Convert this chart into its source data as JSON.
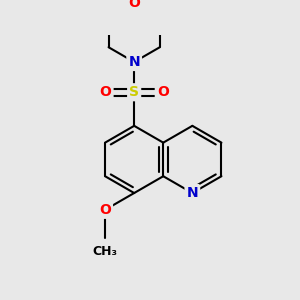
{
  "bg_color": "#e8e8e8",
  "bond_color": "#000000",
  "bond_width": 1.5,
  "atom_colors": {
    "O": "#ff0000",
    "N": "#0000cc",
    "S": "#cccc00",
    "C": "#000000"
  },
  "font_size": 10,
  "fig_size": [
    3.0,
    3.0
  ],
  "dpi": 100
}
